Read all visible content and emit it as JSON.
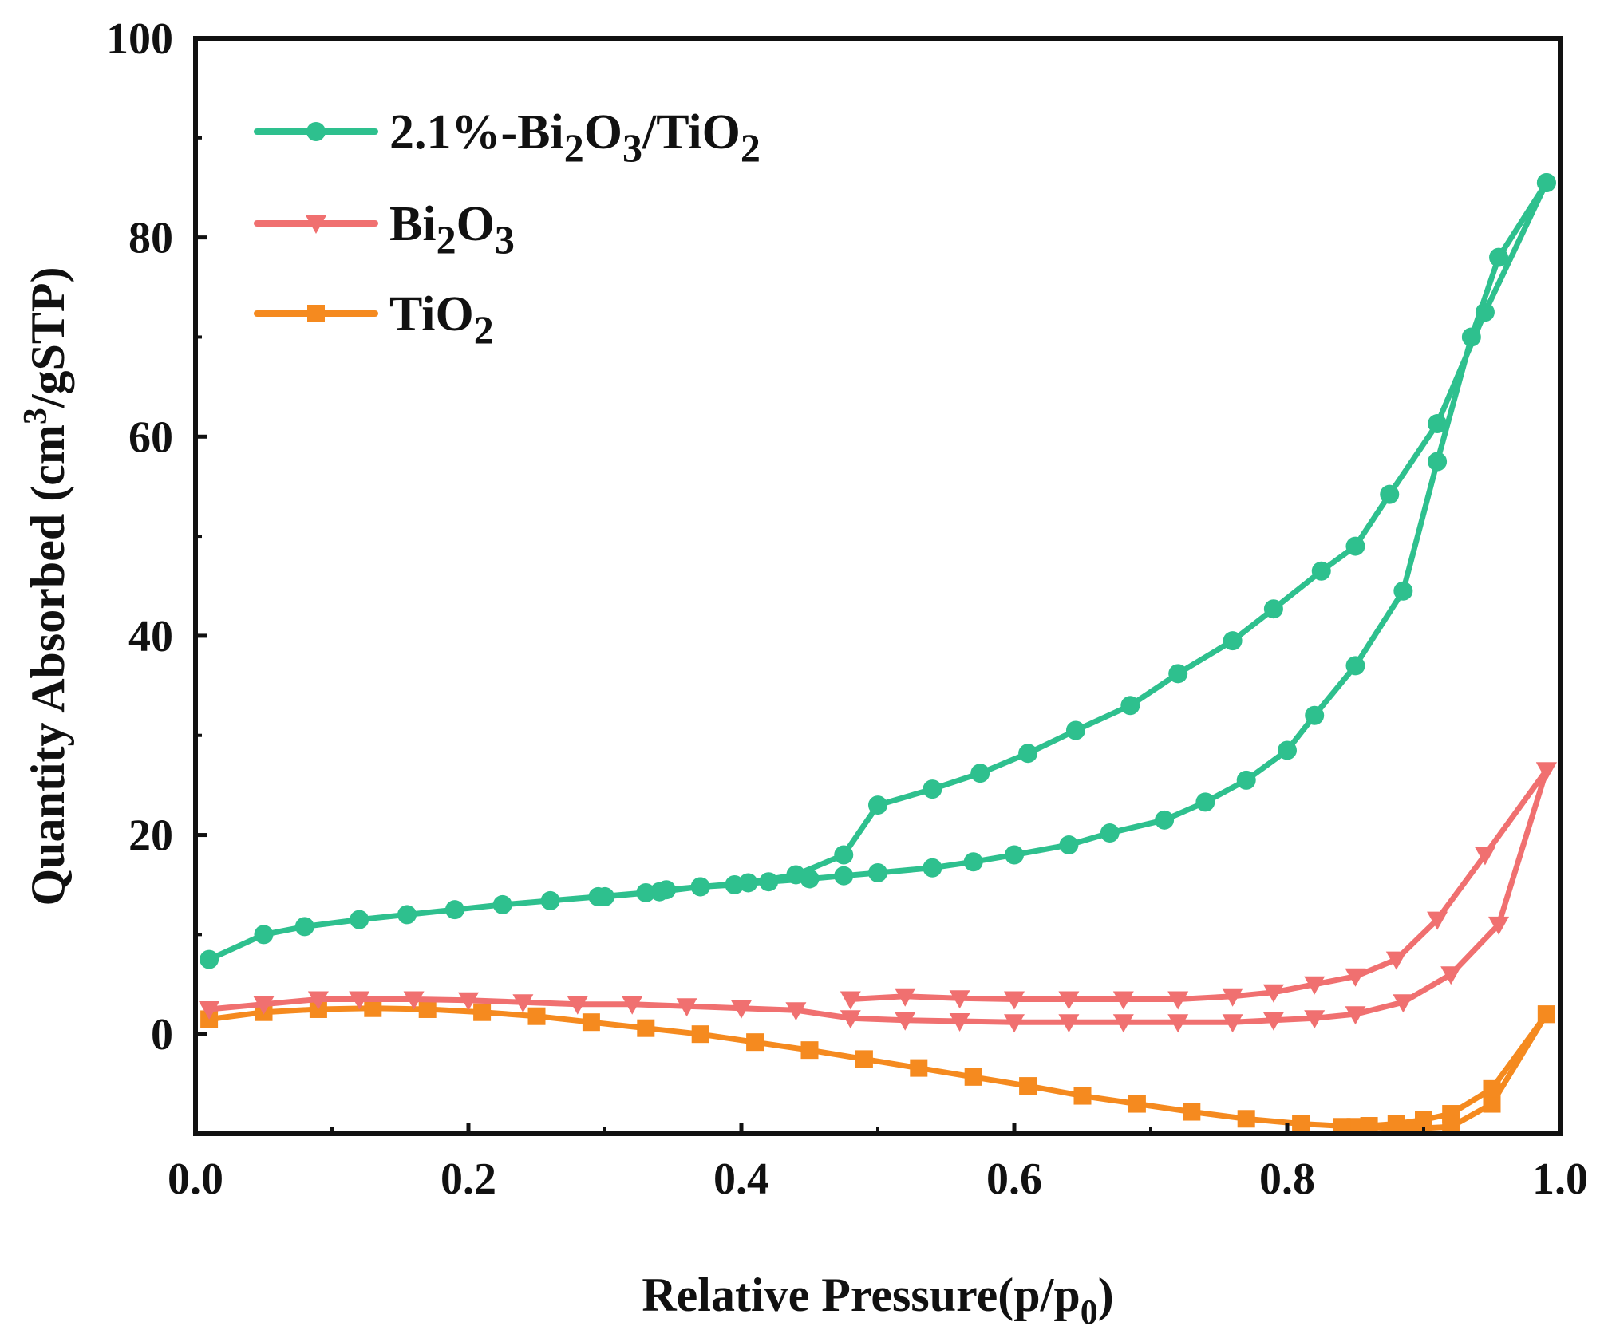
{
  "chart_data": {
    "type": "line",
    "title": "",
    "xlabel": {
      "main": "Relative Pressure(p/p",
      "sub": "0",
      "close": ")"
    },
    "ylabel": {
      "main": "Quantity Absorbed (cm",
      "sup": "3",
      "tail": "/gSTP)"
    },
    "xlim": [
      0.0,
      1.0
    ],
    "ylim": [
      -10,
      100
    ],
    "xticks": [
      "0.0",
      "0.2",
      "0.4",
      "0.6",
      "0.8",
      "1.0"
    ],
    "yticks": [
      "0",
      "20",
      "40",
      "60",
      "80",
      "100"
    ],
    "x_tick_values": [
      0.0,
      0.2,
      0.4,
      0.6,
      0.8,
      1.0
    ],
    "y_tick_values": [
      0,
      20,
      40,
      60,
      80,
      100
    ],
    "legend_position": "top-left",
    "series": [
      {
        "name": "2.1%-Bi2O3/TiO2",
        "label_parts": [
          [
            "2.1%-Bi",
            ""
          ],
          [
            "2",
            "sub"
          ],
          [
            "O",
            ""
          ],
          [
            "3",
            "sub"
          ],
          [
            "/TiO",
            ""
          ],
          [
            "2",
            "sub"
          ]
        ],
        "color": "#2ec08e",
        "marker": "circle",
        "branches": [
          {
            "x": [
              0.01,
              0.05,
              0.08,
              0.12,
              0.155,
              0.19,
              0.225,
              0.26,
              0.295,
              0.33,
              0.345,
              0.37,
              0.395,
              0.42,
              0.45,
              0.475,
              0.5,
              0.54,
              0.57,
              0.6,
              0.64,
              0.67,
              0.71,
              0.74,
              0.77,
              0.8,
              0.82,
              0.85,
              0.885,
              0.91,
              0.935,
              0.955,
              0.99
            ],
            "y": [
              7.5,
              10.0,
              10.8,
              11.5,
              12.0,
              12.5,
              13.0,
              13.4,
              13.8,
              14.2,
              14.5,
              14.8,
              15.0,
              15.3,
              15.6,
              15.9,
              16.2,
              16.7,
              17.3,
              18.0,
              19.0,
              20.2,
              21.5,
              23.3,
              25.5,
              28.5,
              32.0,
              37.0,
              44.5,
              57.5,
              70.0,
              78.0,
              85.5
            ]
          },
          {
            "x": [
              0.99,
              0.945,
              0.91,
              0.875,
              0.85,
              0.825,
              0.79,
              0.76,
              0.72,
              0.685,
              0.645,
              0.61,
              0.575,
              0.54,
              0.5,
              0.475,
              0.44,
              0.405,
              0.37,
              0.34,
              0.3
            ],
            "y": [
              85.5,
              72.5,
              61.3,
              54.2,
              49.0,
              46.5,
              42.7,
              39.5,
              36.2,
              33.0,
              30.5,
              28.2,
              26.2,
              24.6,
              23.0,
              18.0,
              16.0,
              15.2,
              14.8,
              14.3,
              13.8
            ]
          }
        ]
      },
      {
        "name": "Bi2O3",
        "label_parts": [
          [
            "Bi",
            ""
          ],
          [
            "2",
            "sub"
          ],
          [
            "O",
            ""
          ],
          [
            "3",
            "sub"
          ]
        ],
        "color": "#f07070",
        "marker": "triangle-down",
        "branches": [
          {
            "x": [
              0.01,
              0.05,
              0.09,
              0.12,
              0.16,
              0.2,
              0.24,
              0.28,
              0.32,
              0.36,
              0.4,
              0.44,
              0.48,
              0.52,
              0.56,
              0.6,
              0.64,
              0.68,
              0.72,
              0.76,
              0.79,
              0.82,
              0.85,
              0.885,
              0.92,
              0.955,
              0.99
            ],
            "y": [
              2.5,
              3.0,
              3.5,
              3.5,
              3.5,
              3.4,
              3.2,
              3.0,
              3.0,
              2.8,
              2.6,
              2.4,
              1.6,
              1.4,
              1.3,
              1.2,
              1.2,
              1.2,
              1.2,
              1.2,
              1.4,
              1.6,
              2.0,
              3.2,
              6.0,
              11.0,
              26.5
            ]
          },
          {
            "x": [
              0.99,
              0.945,
              0.91,
              0.88,
              0.85,
              0.82,
              0.79,
              0.76,
              0.72,
              0.68,
              0.64,
              0.6,
              0.56,
              0.52,
              0.48
            ],
            "y": [
              26.5,
              18.0,
              11.5,
              7.5,
              5.8,
              5.0,
              4.2,
              3.8,
              3.5,
              3.5,
              3.5,
              3.5,
              3.6,
              3.8,
              3.5
            ]
          }
        ]
      },
      {
        "name": "TiO2",
        "label_parts": [
          [
            "TiO",
            ""
          ],
          [
            "2",
            "sub"
          ]
        ],
        "color": "#f58a1f",
        "marker": "square",
        "branches": [
          {
            "x": [
              0.01,
              0.05,
              0.09,
              0.13,
              0.17,
              0.21,
              0.25,
              0.29,
              0.33,
              0.37,
              0.41,
              0.45,
              0.49,
              0.53,
              0.57,
              0.61,
              0.65,
              0.69,
              0.73,
              0.77,
              0.81,
              0.85,
              0.89,
              0.92,
              0.95,
              0.99
            ],
            "y": [
              1.5,
              2.2,
              2.5,
              2.6,
              2.5,
              2.2,
              1.8,
              1.2,
              0.6,
              0.0,
              -0.8,
              -1.6,
              -2.5,
              -3.4,
              -4.3,
              -5.2,
              -6.2,
              -7.0,
              -7.8,
              -8.5,
              -9.0,
              -9.3,
              -9.5,
              -9.3,
              -7.0,
              2.0
            ]
          },
          {
            "x": [
              0.99,
              0.95,
              0.92,
              0.9,
              0.88,
              0.86,
              0.84
            ],
            "y": [
              2.0,
              -5.5,
              -8.0,
              -8.6,
              -9.0,
              -9.2,
              -9.3
            ]
          }
        ]
      }
    ]
  }
}
